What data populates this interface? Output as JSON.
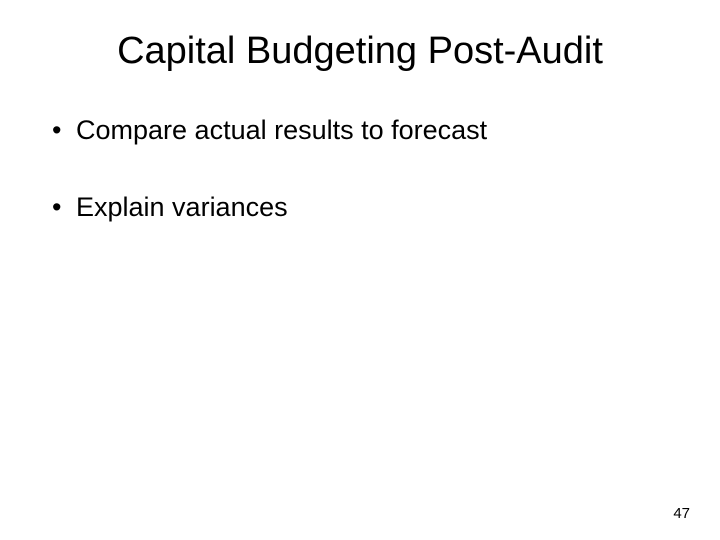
{
  "slide": {
    "title": "Capital Budgeting Post-Audit",
    "title_fontsize": 38,
    "title_color": "#000000",
    "bullets": [
      {
        "text": "Compare actual results to forecast",
        "spacing_after": 42
      },
      {
        "text": "Explain variances",
        "spacing_after": 0
      }
    ],
    "bullet_fontsize": 27,
    "bullet_color": "#000000",
    "page_number": "47",
    "page_number_fontsize": 15,
    "background_color": "#ffffff"
  }
}
